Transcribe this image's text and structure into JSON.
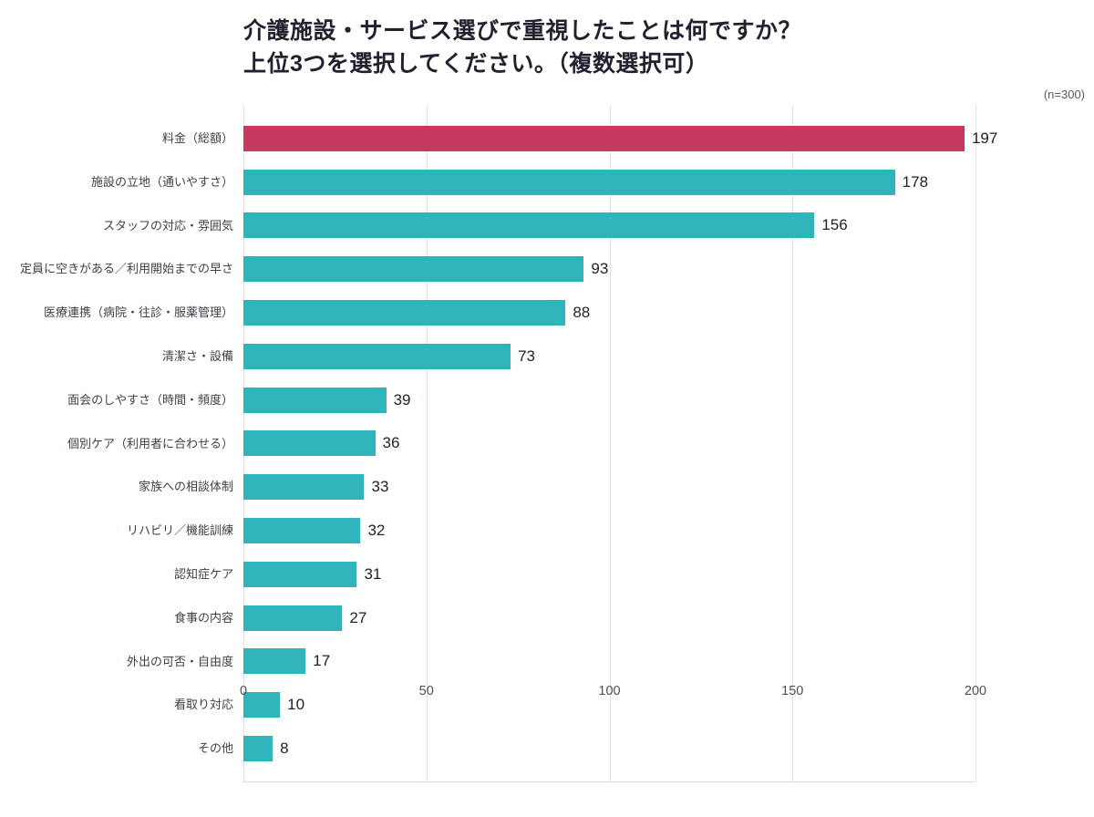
{
  "title": {
    "line1": "介護施設・サービス選びで重視したことは何ですか？",
    "line2": "上位3つを選択してください。（複数選択可）"
  },
  "sample_note": "(n=300)",
  "chart_data": {
    "type": "bar",
    "orientation": "horizontal",
    "title": "介護施設・サービス選びで重視したことは何ですか？ 上位3つを選択してください。（複数選択可）",
    "sample_size_label": "(n=300)",
    "categories": [
      "料金（総額）",
      "施設の立地（通いやすさ）",
      "スタッフの対応・雰囲気",
      "定員に空きがある／利用開始までの早さ",
      "医療連携（病院・往診・服薬管理）",
      "清潔さ・設備",
      "面会のしやすさ（時間・頻度）",
      "個別ケア（利用者に合わせる）",
      "家族への相談体制",
      "リハビリ／機能訓練",
      "認知症ケア",
      "食事の内容",
      "外出の可否・自由度",
      "看取り対応",
      "その他"
    ],
    "values": [
      197,
      178,
      156,
      93,
      88,
      73,
      39,
      36,
      33,
      32,
      31,
      27,
      17,
      10,
      8
    ],
    "xlabel": "",
    "ylabel": "",
    "xlim": [
      0,
      200
    ],
    "xticks": [
      0,
      50,
      100,
      150,
      200
    ],
    "grid": true,
    "highlight_index": 0,
    "colors": {
      "highlight": "#c5385f",
      "default": "#2fb4ba",
      "gridline": "#e4e4e4",
      "value_text": "#1e2125"
    }
  }
}
